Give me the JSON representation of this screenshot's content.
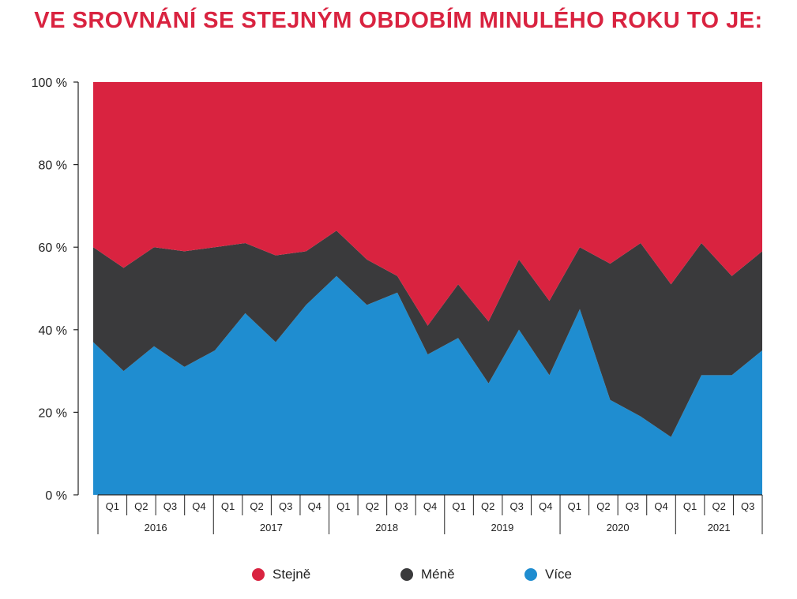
{
  "title": "VE SROVNÁNÍ SE STEJNÝM OBDOBÍM MINULÉHO ROKU TO JE:",
  "chart_data": {
    "type": "area",
    "stacked": true,
    "normalized_percent": true,
    "ylim": [
      0,
      100
    ],
    "yticks": [
      0,
      20,
      40,
      60,
      80,
      100
    ],
    "ytick_labels": [
      "0 %",
      "20 %",
      "40 %",
      "60 %",
      "80 %",
      "100 %"
    ],
    "grid": false,
    "legend_position": "bottom",
    "categories": [
      "2016 Q1",
      "2016 Q2",
      "2016 Q3",
      "2016 Q4",
      "2017 Q1",
      "2017 Q2",
      "2017 Q3",
      "2017 Q4",
      "2018 Q1",
      "2018 Q2",
      "2018 Q3",
      "2018 Q4",
      "2019 Q1",
      "2019 Q2",
      "2019 Q3",
      "2019 Q4",
      "2020 Q1",
      "2020 Q2",
      "2020 Q3",
      "2020 Q4",
      "2021 Q1",
      "2021 Q2",
      "2021 Q3"
    ],
    "quarter_labels": [
      "Q1",
      "Q2",
      "Q3",
      "Q4",
      "Q1",
      "Q2",
      "Q3",
      "Q4",
      "Q1",
      "Q2",
      "Q3",
      "Q4",
      "Q1",
      "Q2",
      "Q3",
      "Q4",
      "Q1",
      "Q2",
      "Q3",
      "Q4",
      "Q1",
      "Q2",
      "Q3"
    ],
    "year_groups": [
      {
        "label": "2016",
        "quarters": 4
      },
      {
        "label": "2017",
        "quarters": 4
      },
      {
        "label": "2018",
        "quarters": 4
      },
      {
        "label": "2019",
        "quarters": 4
      },
      {
        "label": "2020",
        "quarters": 4
      },
      {
        "label": "2021",
        "quarters": 3
      }
    ],
    "series": [
      {
        "name": "Více",
        "color": "#1f8dd0",
        "values": [
          37,
          30,
          36,
          31,
          35,
          44,
          37,
          46,
          53,
          46,
          49,
          34,
          38,
          27,
          40,
          29,
          45,
          23,
          19,
          14,
          29,
          29,
          35
        ]
      },
      {
        "name": "Méně",
        "color": "#3a3a3c",
        "values": [
          23,
          25,
          24,
          28,
          25,
          17,
          21,
          13,
          11,
          11,
          4,
          7,
          13,
          15,
          17,
          18,
          15,
          33,
          42,
          37,
          32,
          24,
          24
        ]
      },
      {
        "name": "Stejně",
        "color": "#d92340",
        "values": [
          40,
          45,
          40,
          41,
          40,
          39,
          42,
          41,
          36,
          43,
          47,
          59,
          49,
          58,
          43,
          53,
          40,
          44,
          39,
          49,
          39,
          47,
          41
        ]
      }
    ]
  },
  "legend": [
    {
      "label": "Stejně",
      "color": "#d92340"
    },
    {
      "label": "Méně",
      "color": "#3a3a3c"
    },
    {
      "label": "Více",
      "color": "#1f8dd0"
    }
  ]
}
